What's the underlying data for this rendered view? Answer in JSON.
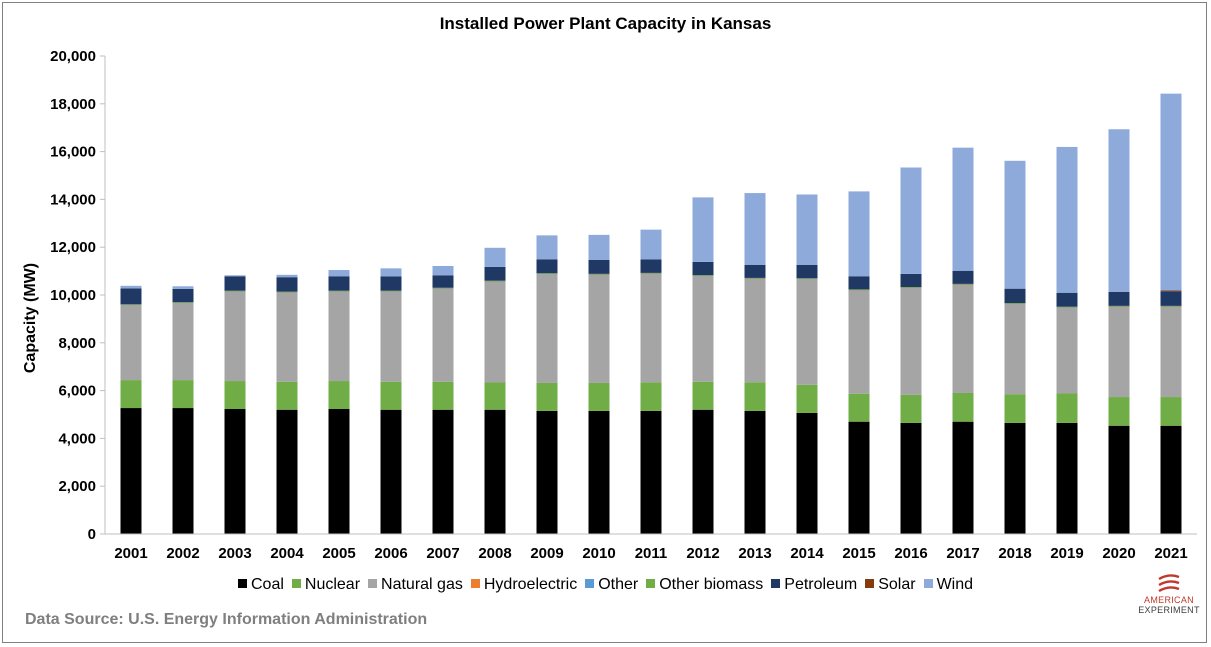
{
  "chart_data": {
    "type": "bar",
    "stacked": true,
    "title": "Installed Power Plant Capacity in Kansas",
    "xlabel": "",
    "ylabel": "Capacity (MW)",
    "ylim": [
      0,
      20000
    ],
    "yticks": [
      0,
      2000,
      4000,
      6000,
      8000,
      10000,
      12000,
      14000,
      16000,
      18000,
      20000
    ],
    "ytick_labels": [
      "0",
      "2,000",
      "4,000",
      "6,000",
      "8,000",
      "10,000",
      "12,000",
      "14,000",
      "16,000",
      "18,000",
      "20,000"
    ],
    "grid": false,
    "legend_position": "bottom",
    "categories": [
      "2001",
      "2002",
      "2003",
      "2004",
      "2005",
      "2006",
      "2007",
      "2008",
      "2009",
      "2010",
      "2011",
      "2012",
      "2013",
      "2014",
      "2015",
      "2016",
      "2017",
      "2018",
      "2019",
      "2020",
      "2021"
    ],
    "series": [
      {
        "name": "Coal",
        "color": "#000000",
        "values": [
          5270,
          5270,
          5230,
          5200,
          5230,
          5200,
          5200,
          5200,
          5150,
          5150,
          5150,
          5200,
          5150,
          5070,
          4700,
          4650,
          4700,
          4650,
          4650,
          4530,
          4530
        ]
      },
      {
        "name": "Nuclear",
        "color": "#70ad47",
        "values": [
          1170,
          1170,
          1170,
          1170,
          1170,
          1170,
          1170,
          1140,
          1170,
          1170,
          1200,
          1170,
          1200,
          1170,
          1170,
          1170,
          1200,
          1200,
          1230,
          1200,
          1200
        ]
      },
      {
        "name": "Natural gas",
        "color": "#a5a5a5",
        "values": [
          3160,
          3250,
          3770,
          3760,
          3770,
          3800,
          3920,
          4250,
          4580,
          4550,
          4560,
          4450,
          4350,
          4450,
          4350,
          4500,
          4550,
          3800,
          3620,
          3800,
          3800
        ]
      },
      {
        "name": "Hydroelectric",
        "color": "#ed7d31",
        "values": [
          5,
          5,
          5,
          5,
          5,
          5,
          5,
          5,
          5,
          5,
          5,
          5,
          5,
          5,
          5,
          5,
          5,
          5,
          5,
          5,
          5
        ]
      },
      {
        "name": "Other",
        "color": "#5b9bd5",
        "values": [
          5,
          5,
          5,
          5,
          5,
          5,
          5,
          5,
          5,
          5,
          5,
          5,
          5,
          5,
          5,
          5,
          5,
          5,
          5,
          5,
          5
        ]
      },
      {
        "name": "Other biomass",
        "color": "#70ad47",
        "values": [
          5,
          5,
          5,
          5,
          5,
          5,
          5,
          5,
          5,
          5,
          5,
          5,
          5,
          5,
          5,
          5,
          5,
          5,
          5,
          5,
          5
        ]
      },
      {
        "name": "Petroleum",
        "color": "#203864",
        "values": [
          660,
          550,
          600,
          600,
          600,
          590,
          520,
          570,
          580,
          580,
          560,
          550,
          550,
          550,
          550,
          550,
          550,
          600,
          580,
          590,
          610
        ]
      },
      {
        "name": "Solar",
        "color": "#843c0c",
        "values": [
          0,
          0,
          0,
          0,
          0,
          0,
          0,
          0,
          0,
          0,
          0,
          0,
          0,
          0,
          0,
          0,
          0,
          0,
          0,
          0,
          40
        ]
      },
      {
        "name": "Wind",
        "color": "#8eaadb",
        "values": [
          110,
          110,
          40,
          100,
          260,
          340,
          390,
          800,
          1000,
          1050,
          1250,
          2700,
          3000,
          2950,
          3550,
          4450,
          5150,
          5350,
          6100,
          6800,
          8230
        ]
      }
    ]
  },
  "footer": {
    "source": "Data Source: U.S. Energy Information Administration",
    "logo_line_1": "AMERICAN",
    "logo_line_2": "EXPERIMENT",
    "logo_color": "#c0392b"
  }
}
